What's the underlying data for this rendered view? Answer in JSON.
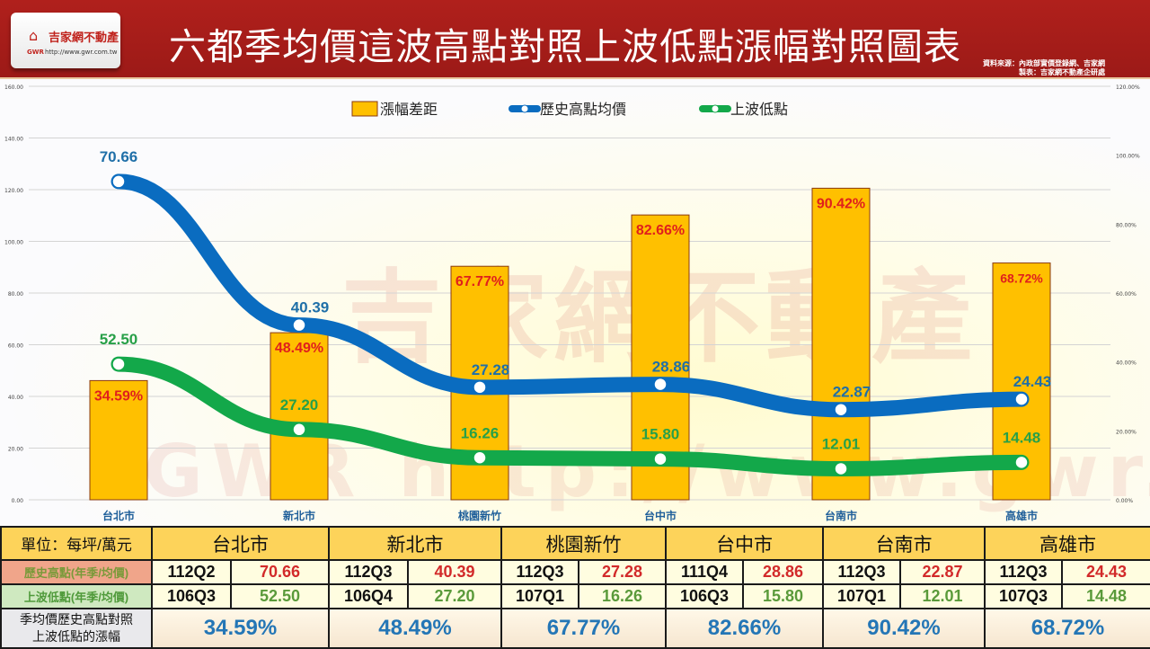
{
  "header": {
    "logo_mark": "⌂",
    "logo_name": "吉家網不動產",
    "logo_gwr": "GWR",
    "logo_url": "http://www.gwr.com.tw",
    "title": "六都季均價這波高點對照上波低點漲幅對照圖表",
    "source_line1": "資料來源：內政部實價登錄網、吉家網",
    "source_line2": "製表：吉家網不動產企研處"
  },
  "watermark": {
    "text": "吉家網不動產",
    "url": "GWR http://www.gwr.com.tw"
  },
  "chart_data": {
    "type": "bar+stacked-line",
    "categories": [
      "台北市",
      "新北市",
      "桃園新竹",
      "台中市",
      "台南市",
      "高雄市"
    ],
    "left_axis": {
      "ylim": [
        0,
        160
      ],
      "ticks": [
        "0.00",
        "20.00",
        "40.00",
        "60.00",
        "80.00",
        "100.00",
        "120.00",
        "140.00",
        "160.00"
      ]
    },
    "right_axis": {
      "ylim": [
        0,
        120
      ],
      "ticks": [
        "0.00%",
        "20.00%",
        "40.00%",
        "60.00%",
        "80.00%",
        "100.00%",
        "120.00%"
      ]
    },
    "grid": true,
    "legend_position": "top",
    "series": [
      {
        "name": "漲幅差距",
        "type": "bar",
        "axis": "right",
        "color": "#ffc000",
        "values": [
          34.59,
          48.49,
          67.77,
          82.66,
          90.42,
          68.72
        ],
        "labels": [
          "34.59%",
          "48.49%",
          "67.77%",
          "82.66%",
          "90.42%",
          "68.72%"
        ]
      },
      {
        "name": "歷史高點均價",
        "type": "line",
        "axis": "left",
        "stacked": true,
        "color": "#0a6cc0",
        "values": [
          70.66,
          40.39,
          27.28,
          28.86,
          22.87,
          24.43
        ],
        "labels": [
          "70.66",
          "40.39",
          "27.28",
          "28.86",
          "22.87",
          "24.43"
        ]
      },
      {
        "name": "上波低點",
        "type": "line",
        "axis": "left",
        "color": "#13a84a",
        "values": [
          52.5,
          27.2,
          16.26,
          15.8,
          12.01,
          14.48
        ],
        "labels": [
          "52.50",
          "27.20",
          "16.26",
          "15.80",
          "12.01",
          "14.48"
        ]
      }
    ]
  },
  "table": {
    "unit_label": "單位：每坪/萬元",
    "high_label": "歷史高點(年季/均價)",
    "low_label": "上波低點(年季/均價)",
    "pct_label_1": "季均價歷史高點對照",
    "pct_label_2": "上波低點的漲幅",
    "cities": [
      {
        "name": "台北市",
        "high_q": "112Q2",
        "high": "70.66",
        "low_q": "106Q3",
        "low": "52.50",
        "pct": "34.59%"
      },
      {
        "name": "新北市",
        "high_q": "112Q3",
        "high": "40.39",
        "low_q": "106Q4",
        "low": "27.20",
        "pct": "48.49%"
      },
      {
        "name": "桃園新竹",
        "high_q": "112Q3",
        "high": "27.28",
        "low_q": "107Q1",
        "low": "16.26",
        "pct": "67.77%"
      },
      {
        "name": "台中市",
        "high_q": "111Q4",
        "high": "28.86",
        "low_q": "106Q3",
        "low": "15.80",
        "pct": "82.66%"
      },
      {
        "name": "台南市",
        "high_q": "112Q3",
        "high": "22.87",
        "low_q": "107Q1",
        "low": "12.01",
        "pct": "90.42%"
      },
      {
        "name": "高雄市",
        "high_q": "112Q3",
        "high": "24.43",
        "low_q": "107Q3",
        "low": "14.48",
        "pct": "68.72%"
      }
    ]
  }
}
